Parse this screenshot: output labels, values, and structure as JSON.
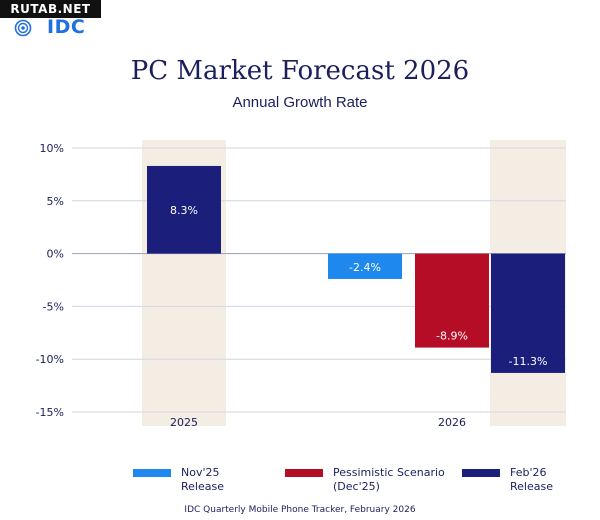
{
  "watermark": "RUTAB.NET",
  "logo_text": "IDC",
  "chart_data": {
    "type": "bar",
    "title": "PC Market Forecast 2026",
    "subtitle": "Annual Growth Rate",
    "y_ticks": [
      "10%",
      "5%",
      "0%",
      "-5%",
      "-10%",
      "-15%"
    ],
    "ylim": [
      -15,
      10
    ],
    "grid": true,
    "categories": [
      "2025",
      "2026"
    ],
    "series": [
      {
        "name": "Nov'25 Release",
        "color": "#1e88ee",
        "values": [
          null,
          -2.4
        ],
        "labels": [
          null,
          "-2.4%"
        ]
      },
      {
        "name": "Pessimistic Scenario (Dec'25)",
        "color": "#b50d26",
        "values": [
          null,
          -8.9
        ],
        "labels": [
          null,
          "-8.9%"
        ]
      },
      {
        "name": "Feb'26 Release",
        "color": "#1b1e7a",
        "values": [
          8.3,
          -11.3
        ],
        "labels": [
          "8.3%",
          "-11.3%"
        ]
      }
    ],
    "highlight_color": "#f3ede4"
  },
  "legend": [
    {
      "label": "Nov'25\nRelease",
      "color": "#1e88ee"
    },
    {
      "label": "Pessimistic Scenario\n(Dec'25)",
      "color": "#b50d26"
    },
    {
      "label": "Feb'26\nRelease",
      "color": "#1b1e7a"
    }
  ],
  "footer": "IDC Quarterly Mobile Phone Tracker, February 2026"
}
